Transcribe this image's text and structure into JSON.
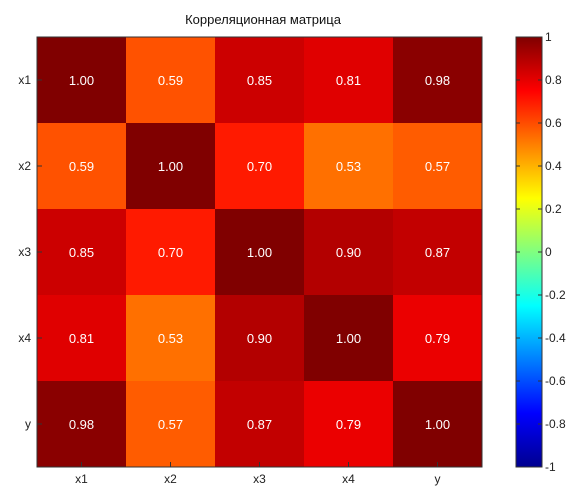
{
  "chart_data": {
    "type": "heatmap",
    "title": "Корреляционная матрица",
    "rows": [
      "x1",
      "x2",
      "x3",
      "x4",
      "y"
    ],
    "columns": [
      "x1",
      "x2",
      "x3",
      "x4",
      "y"
    ],
    "values": [
      [
        1.0,
        0.59,
        0.85,
        0.81,
        0.98
      ],
      [
        0.59,
        1.0,
        0.7,
        0.53,
        0.57
      ],
      [
        0.85,
        0.7,
        1.0,
        0.9,
        0.87
      ],
      [
        0.81,
        0.53,
        0.9,
        1.0,
        0.79
      ],
      [
        0.98,
        0.57,
        0.87,
        0.79,
        1.0
      ]
    ],
    "value_labels": [
      [
        "1.00",
        "0.59",
        "0.85",
        "0.81",
        "0.98"
      ],
      [
        "0.59",
        "1.00",
        "0.70",
        "0.53",
        "0.57"
      ],
      [
        "0.85",
        "0.70",
        "1.00",
        "0.90",
        "0.87"
      ],
      [
        "0.81",
        "0.53",
        "0.90",
        "1.00",
        "0.79"
      ],
      [
        "0.98",
        "0.57",
        "0.87",
        "0.79",
        "1.00"
      ]
    ],
    "colorbar": {
      "range": [
        -1,
        1
      ],
      "ticks": [
        1,
        0.8,
        0.6,
        0.4,
        0.2,
        0,
        -0.2,
        -0.4,
        -0.6,
        -0.8,
        -1
      ],
      "tick_labels": [
        "1",
        "0.8",
        "0.6",
        "0.4",
        "0.2",
        "0",
        "-0.2",
        "-0.4",
        "-0.6",
        "-0.8",
        "-1"
      ],
      "colormap": "jet"
    },
    "cell_text_color": "#ffffff"
  }
}
